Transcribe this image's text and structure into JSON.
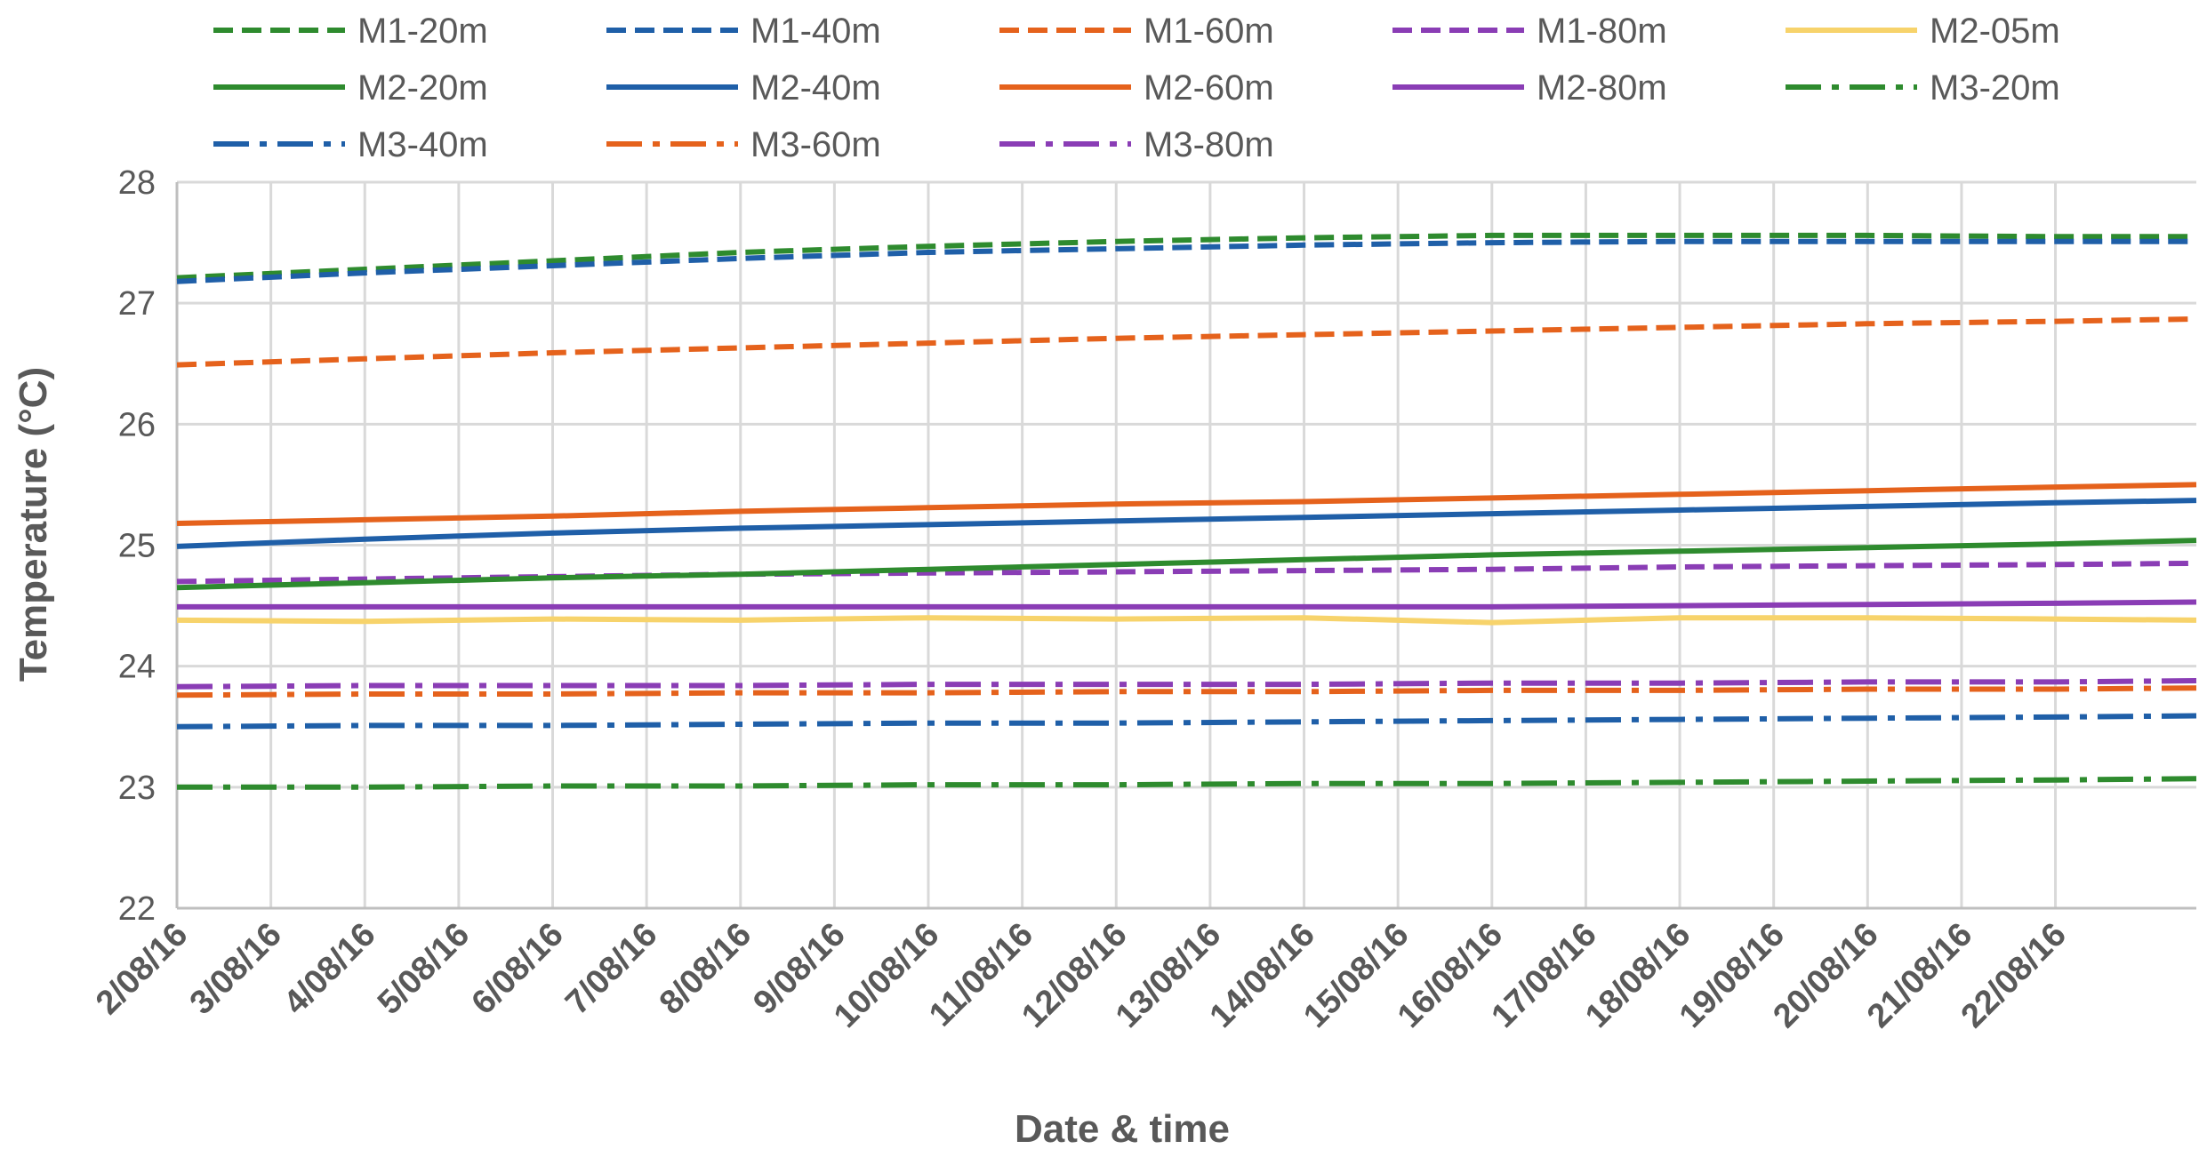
{
  "chart_data": {
    "type": "line",
    "title": "",
    "xlabel": "Date & time",
    "ylabel": "Temperature (°C)",
    "ylim": [
      22,
      28
    ],
    "yticks": [
      22,
      23,
      24,
      25,
      26,
      27,
      28
    ],
    "xlim": [
      0,
      21.5
    ],
    "grid": true,
    "legend_position": "top",
    "categories": [
      "2/08/16",
      "3/08/16",
      "4/08/16",
      "5/08/16",
      "6/08/16",
      "7/08/16",
      "8/08/16",
      "9/08/16",
      "10/08/16",
      "11/08/16",
      "12/08/16",
      "13/08/16",
      "14/08/16",
      "15/08/16",
      "16/08/16",
      "17/08/16",
      "18/08/16",
      "19/08/16",
      "20/08/16",
      "21/08/16",
      "22/08/16"
    ],
    "x": [
      0,
      2,
      4,
      6,
      8,
      10,
      12,
      14,
      16,
      18,
      20,
      21.5
    ],
    "series": [
      {
        "name": "M1-20m",
        "color": "#2e8b2e",
        "style": "dash",
        "values": [
          27.21,
          27.28,
          27.35,
          27.42,
          27.47,
          27.51,
          27.54,
          27.56,
          27.56,
          27.56,
          27.55,
          27.55
        ]
      },
      {
        "name": "M1-40m",
        "color": "#1f5fa8",
        "style": "dash",
        "values": [
          27.18,
          27.25,
          27.31,
          27.37,
          27.42,
          27.45,
          27.48,
          27.5,
          27.51,
          27.51,
          27.51,
          27.51
        ]
      },
      {
        "name": "M1-60m",
        "color": "#e5621c",
        "style": "dash",
        "values": [
          26.49,
          26.54,
          26.59,
          26.63,
          26.67,
          26.71,
          26.74,
          26.77,
          26.8,
          26.83,
          26.85,
          26.87
        ]
      },
      {
        "name": "M1-80m",
        "color": "#8a3db5",
        "style": "dash",
        "values": [
          24.7,
          24.72,
          24.74,
          24.76,
          24.77,
          24.78,
          24.79,
          24.8,
          24.82,
          24.83,
          24.84,
          24.85
        ]
      },
      {
        "name": "M2-05m",
        "color": "#f7d36b",
        "style": "solid",
        "values": [
          24.38,
          24.37,
          24.39,
          24.38,
          24.4,
          24.39,
          24.4,
          24.36,
          24.4,
          24.4,
          24.39,
          24.38
        ]
      },
      {
        "name": "M2-20m",
        "color": "#2e8b2e",
        "style": "solid",
        "values": [
          24.65,
          24.69,
          24.73,
          24.76,
          24.8,
          24.84,
          24.88,
          24.92,
          24.95,
          24.98,
          25.01,
          25.04
        ]
      },
      {
        "name": "M2-40m",
        "color": "#1f5fa8",
        "style": "solid",
        "values": [
          24.99,
          25.05,
          25.1,
          25.14,
          25.17,
          25.2,
          25.23,
          25.26,
          25.29,
          25.32,
          25.35,
          25.37
        ]
      },
      {
        "name": "M2-60m",
        "color": "#e5621c",
        "style": "solid",
        "values": [
          25.18,
          25.21,
          25.24,
          25.28,
          25.31,
          25.34,
          25.36,
          25.39,
          25.42,
          25.45,
          25.48,
          25.5
        ]
      },
      {
        "name": "M2-80m",
        "color": "#8a3db5",
        "style": "solid",
        "values": [
          24.49,
          24.49,
          24.49,
          24.49,
          24.49,
          24.49,
          24.49,
          24.49,
          24.5,
          24.51,
          24.52,
          24.53
        ]
      },
      {
        "name": "M3-20m",
        "color": "#2e8b2e",
        "style": "dashdot",
        "values": [
          23.0,
          23.0,
          23.01,
          23.01,
          23.02,
          23.02,
          23.03,
          23.03,
          23.04,
          23.05,
          23.06,
          23.07
        ]
      },
      {
        "name": "M3-40m",
        "color": "#1f5fa8",
        "style": "dashdot",
        "values": [
          23.5,
          23.51,
          23.51,
          23.52,
          23.53,
          23.53,
          23.54,
          23.55,
          23.56,
          23.57,
          23.58,
          23.59
        ]
      },
      {
        "name": "M3-60m",
        "color": "#e5621c",
        "style": "dashdot",
        "values": [
          23.76,
          23.77,
          23.77,
          23.78,
          23.78,
          23.79,
          23.79,
          23.8,
          23.8,
          23.81,
          23.81,
          23.82
        ]
      },
      {
        "name": "M3-80m",
        "color": "#8a3db5",
        "style": "dashdot",
        "values": [
          23.83,
          23.84,
          23.84,
          23.84,
          23.85,
          23.85,
          23.85,
          23.86,
          23.86,
          23.87,
          23.87,
          23.88
        ]
      }
    ]
  }
}
